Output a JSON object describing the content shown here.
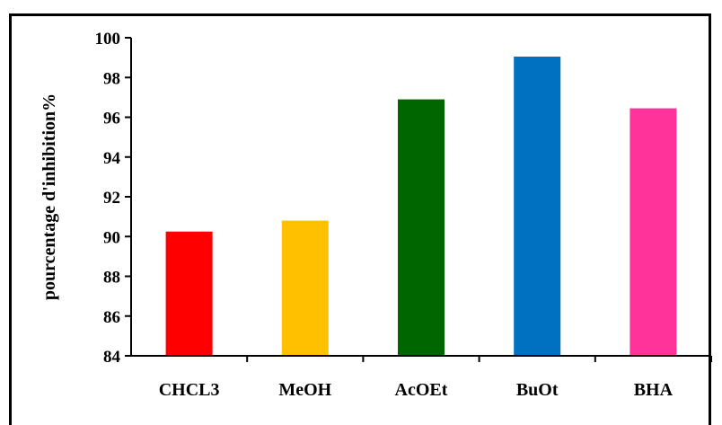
{
  "chart_data": {
    "type": "bar",
    "categories": [
      "CHCL3",
      "MeOH",
      "AcOEt",
      "BuOt",
      "BHA"
    ],
    "values": [
      90.25,
      90.8,
      96.9,
      99.05,
      96.45
    ],
    "colors": [
      "#ff0000",
      "#ffc000",
      "#006600",
      "#0070c0",
      "#ff3399"
    ],
    "title": "",
    "xlabel": "",
    "ylabel": "pourcentage d'inhibition%",
    "ylim": [
      84,
      100
    ],
    "yticks": [
      "84",
      "86",
      "88",
      "90",
      "92",
      "94",
      "96",
      "98",
      "100"
    ],
    "grid": false,
    "legend": "none"
  }
}
